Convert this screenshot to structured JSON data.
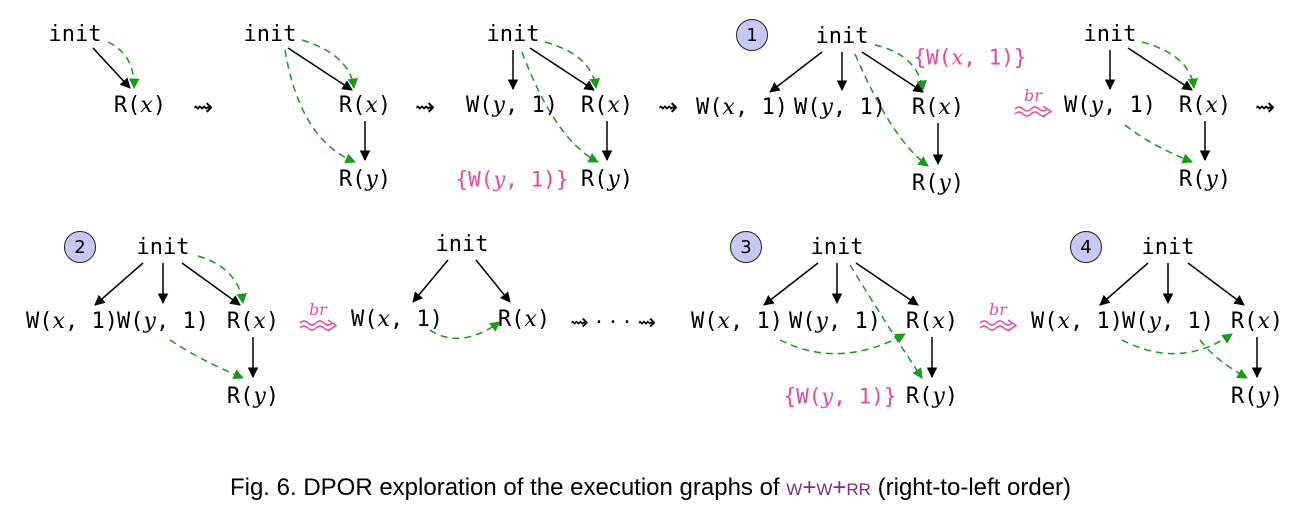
{
  "labels": {
    "init": "init",
    "rx": "R(x)",
    "ry": "R(y)",
    "wx1": "W(x,1)",
    "wy1": "W(y,1)",
    "ann_wx1": "{W(x,1)}",
    "ann_wy1": "{W(y,1)}",
    "br": "br",
    "squig": "⇝",
    "dots": "⇝ · · · ⇝"
  },
  "badges": [
    "1",
    "2",
    "3",
    "4"
  ],
  "caption": {
    "prefix": "Fig. 6.  DPOR exploration of the execution graphs of ",
    "program": "w+w+rr",
    "suffix": " (right-to-left order)"
  },
  "colors": {
    "edge": "#000000",
    "rf": "#1a9a1a",
    "annotation": "#e8489a",
    "badge": "#c8c8f5",
    "program": "#7b2d8b"
  }
}
